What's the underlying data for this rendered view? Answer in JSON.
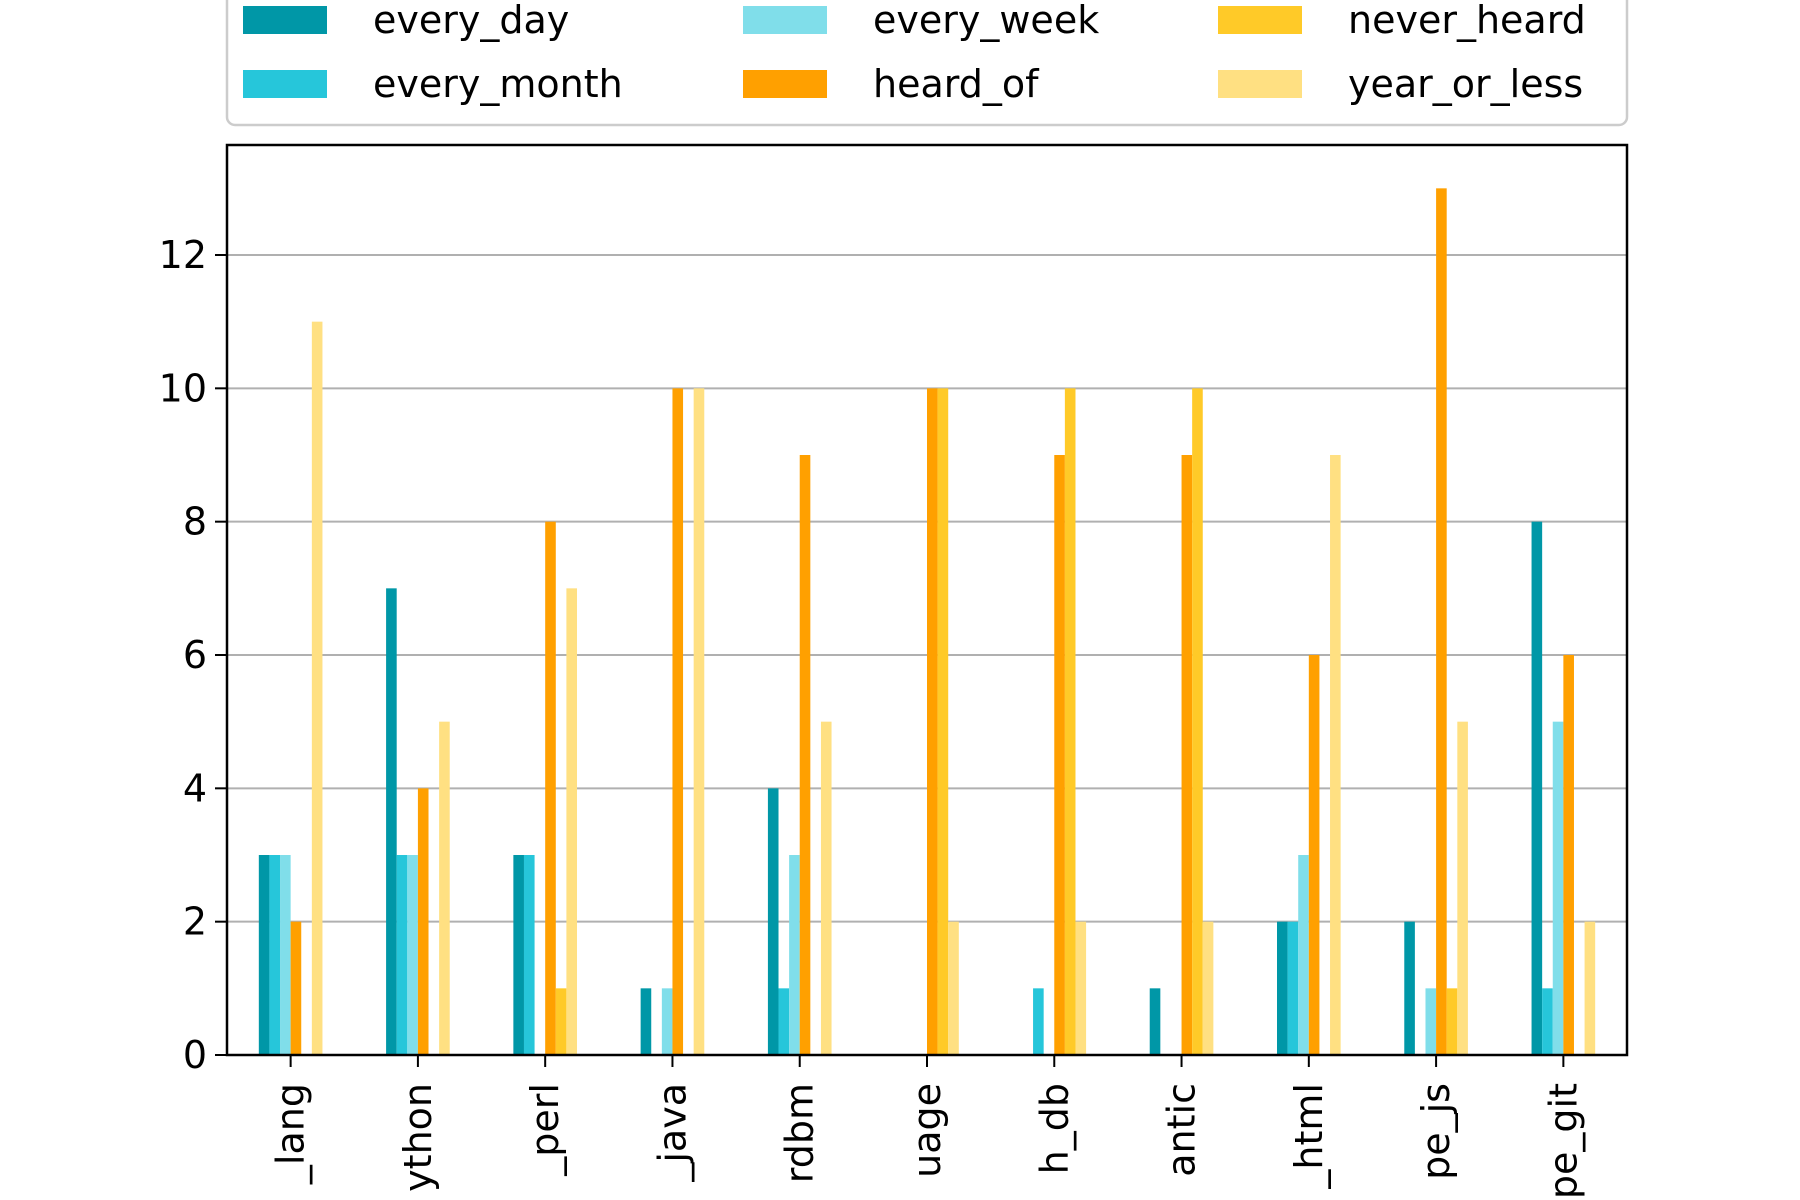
{
  "chart_data": {
    "type": "bar",
    "title": "",
    "xlabel": "",
    "ylabel": "",
    "ylim": [
      0,
      13.65
    ],
    "yticks": [
      0,
      2,
      4,
      6,
      8,
      10,
      12
    ],
    "grid": "horizontal",
    "legend_position": "top",
    "categories": [
      "_lang",
      "ython",
      "_perl",
      "_java",
      "rdbm",
      "uage",
      "h_db",
      "antic",
      "_html",
      "pe_js",
      "pe_git"
    ],
    "series": [
      {
        "name": "every_day",
        "color": "#0097a7",
        "values": [
          3,
          7,
          3,
          1,
          4,
          0,
          0,
          1,
          2,
          2,
          8
        ]
      },
      {
        "name": "every_month",
        "color": "#26c6da",
        "values": [
          3,
          3,
          3,
          0,
          1,
          0,
          1,
          0,
          2,
          0,
          1
        ]
      },
      {
        "name": "every_week",
        "color": "#80deea",
        "values": [
          3,
          3,
          0,
          1,
          3,
          0,
          0,
          0,
          3,
          1,
          5
        ]
      },
      {
        "name": "heard_of",
        "color": "#ffa000",
        "values": [
          2,
          4,
          8,
          10,
          9,
          10,
          9,
          9,
          6,
          13,
          6
        ]
      },
      {
        "name": "never_heard",
        "color": "#ffca28",
        "values": [
          0,
          0,
          1,
          0,
          0,
          10,
          10,
          10,
          0,
          1,
          0
        ]
      },
      {
        "name": "year_or_less",
        "color": "#ffe082",
        "values": [
          11,
          5,
          7,
          10,
          5,
          2,
          2,
          2,
          9,
          5,
          2
        ]
      }
    ]
  }
}
